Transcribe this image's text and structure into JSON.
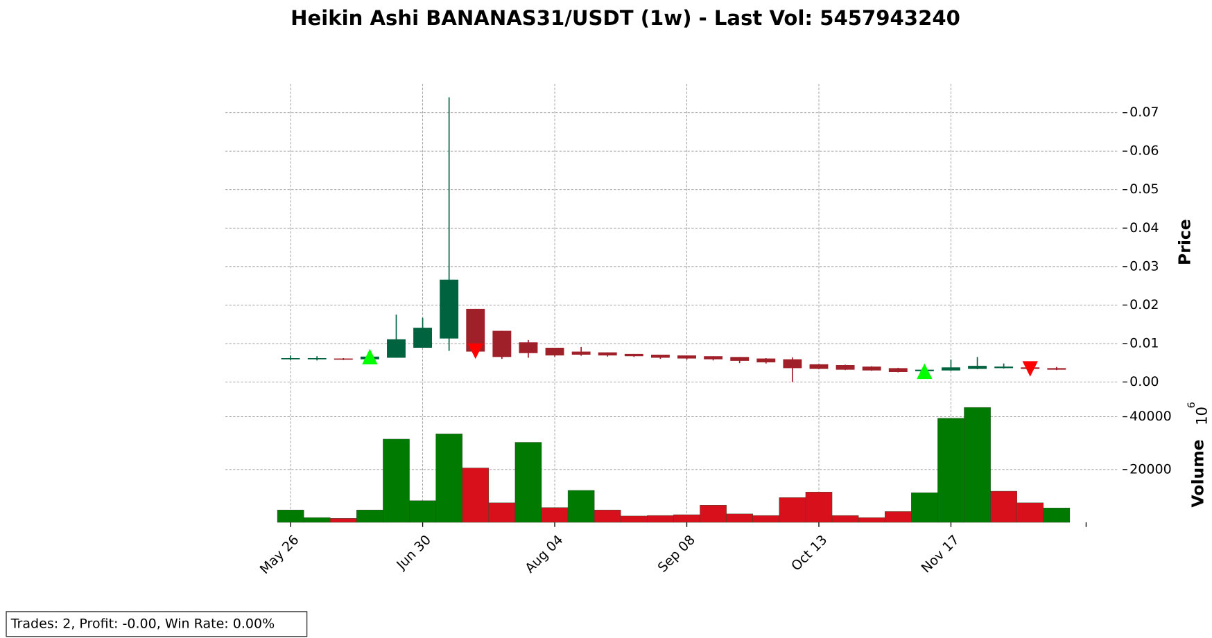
{
  "chart_data": {
    "type": "candlestick",
    "title": "Heikin Ashi BANANAS31/USDT (1w) - Last Vol: 5457943240",
    "categories": [
      "May 26",
      null,
      null,
      null,
      null,
      "Jun 30",
      null,
      null,
      null,
      null,
      "Aug 04",
      null,
      null,
      null,
      null,
      "Sep 08",
      null,
      null,
      null,
      null,
      "Oct 13",
      null,
      null,
      null,
      null,
      "Nov 17",
      null,
      null,
      null,
      null
    ],
    "open": [
      0.006,
      0.006,
      0.0061,
      0.0059,
      0.0063,
      0.0089,
      0.0113,
      0.019,
      0.0133,
      0.0103,
      0.0089,
      0.0079,
      0.0077,
      0.0073,
      0.0071,
      0.0069,
      0.0067,
      0.0065,
      0.0061,
      0.0059,
      0.0046,
      0.0044,
      0.004,
      0.0036,
      0.0028,
      0.003,
      0.0034,
      0.0036,
      0.0038,
      0.0036
    ],
    "high": [
      0.0069,
      0.0067,
      0.0062,
      0.007,
      0.0175,
      0.0167,
      0.074,
      0.019,
      0.0133,
      0.0109,
      0.0089,
      0.0091,
      0.0077,
      0.0073,
      0.0071,
      0.0069,
      0.0067,
      0.0065,
      0.0062,
      0.0064,
      0.0047,
      0.0045,
      0.0041,
      0.0037,
      0.0033,
      0.0058,
      0.0065,
      0.0048,
      0.0039,
      0.0039
    ],
    "low": [
      0.0057,
      0.0056,
      0.0057,
      0.0056,
      0.0063,
      0.0089,
      0.0081,
      0.0077,
      0.006,
      0.0063,
      0.0066,
      0.0068,
      0.0066,
      0.0065,
      0.006,
      0.0058,
      0.0056,
      0.0049,
      0.0048,
      0.0,
      0.0033,
      0.0031,
      0.0029,
      0.0025,
      0.0027,
      0.0029,
      0.0033,
      0.0035,
      0.0033,
      0.0031
    ],
    "close": [
      0.0062,
      0.0062,
      0.0058,
      0.0066,
      0.0111,
      0.0141,
      0.0266,
      0.0079,
      0.0065,
      0.0075,
      0.0069,
      0.0071,
      0.0069,
      0.0067,
      0.0063,
      0.0061,
      0.0059,
      0.0055,
      0.0051,
      0.0036,
      0.0034,
      0.0032,
      0.003,
      0.0026,
      0.0032,
      0.0038,
      0.0042,
      0.004,
      0.0034,
      0.0032
    ],
    "up_color": "#006340",
    "down_color": "#a0202a",
    "ylim": [
      -0.0036,
      0.0775
    ],
    "yticks": [
      {
        "value": 0,
        "label": "0.00"
      },
      0.01,
      0.02,
      0.03,
      0.04,
      0.05,
      0.06,
      0.07
    ],
    "ylabel": "Price",
    "volume": [
      4700,
      1800,
      1500,
      4700,
      31500,
      8200,
      33500,
      20600,
      7400,
      30300,
      5600,
      12100,
      4700,
      2400,
      2600,
      2900,
      6500,
      3200,
      2600,
      9400,
      11500,
      2600,
      1800,
      4100,
      11200,
      39400,
      43500,
      11800,
      7400,
      5457.94324
    ],
    "volume_colors": [
      "#007a00",
      "#007a00",
      "#d8101c",
      "#007a00",
      "#007a00",
      "#007a00",
      "#007a00",
      "#d8101c",
      "#d8101c",
      "#007a00",
      "#d8101c",
      "#007a00",
      "#d8101c",
      "#d8101c",
      "#d8101c",
      "#d8101c",
      "#d8101c",
      "#d8101c",
      "#d8101c",
      "#d8101c",
      "#d8101c",
      "#d8101c",
      "#d8101c",
      "#d8101c",
      "#007a00",
      "#007a00",
      "#007a00",
      "#d8101c",
      "#d8101c",
      "#007a00"
    ],
    "y2lim": [
      0,
      47900
    ],
    "y2ticks": [
      20000,
      40000
    ],
    "y2label": "Volume",
    "y2_scale_base": "10",
    "y2_scale_exponent": "6",
    "signals": [
      {
        "marker": "up",
        "color": "#00ff00",
        "values": [
          null,
          null,
          null,
          0.0066,
          null,
          null,
          null,
          null,
          null,
          null,
          null,
          null,
          null,
          null,
          null,
          null,
          null,
          null,
          null,
          null,
          null,
          null,
          null,
          null,
          0.0028,
          null,
          null,
          null,
          null,
          null
        ]
      },
      {
        "marker": "down",
        "color": "#ff0000",
        "values": [
          null,
          null,
          null,
          null,
          null,
          null,
          null,
          0.008,
          null,
          null,
          null,
          null,
          null,
          null,
          null,
          null,
          null,
          null,
          null,
          null,
          null,
          null,
          null,
          null,
          null,
          null,
          null,
          null,
          0.0034,
          null
        ]
      }
    ],
    "grid": true,
    "footer": "Trades: 2, Profit: -0.00, Win Rate: 0.00%"
  }
}
